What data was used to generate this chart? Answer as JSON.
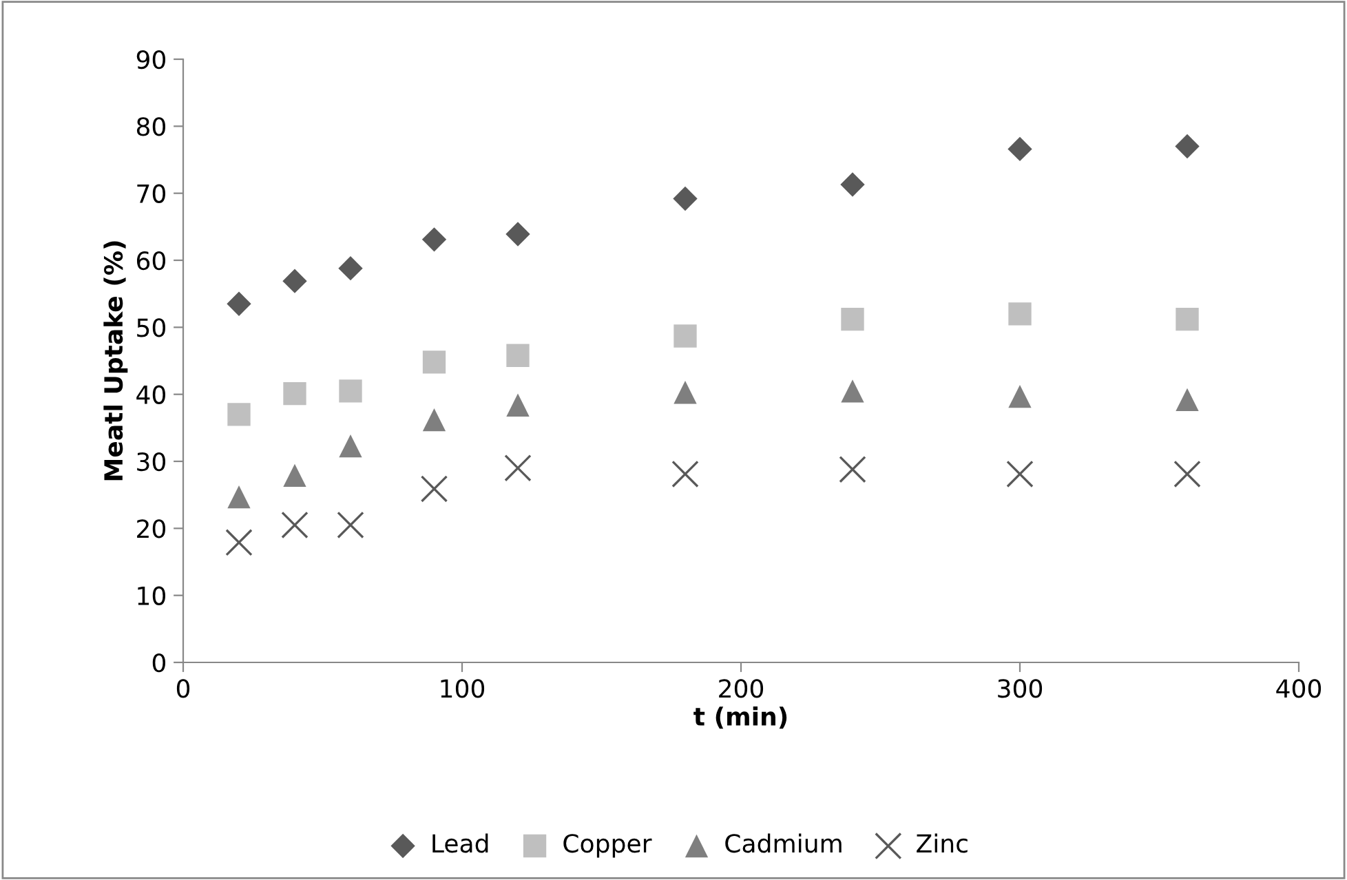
{
  "chart_data": {
    "type": "scatter",
    "xlabel": "t (min)",
    "ylabel": "Meatl Uptake (%)",
    "xlim": [
      0,
      400
    ],
    "xticks": [
      0,
      100,
      200,
      300,
      400
    ],
    "ylim": [
      0,
      90
    ],
    "yticks": [
      0,
      10,
      20,
      30,
      40,
      50,
      60,
      70,
      80,
      90
    ],
    "grid": false,
    "legend": "bottom",
    "x": [
      20,
      40,
      60,
      90,
      120,
      180,
      240,
      300,
      360
    ],
    "series": [
      {
        "name": "Lead",
        "color": "#595959",
        "marker": "diamond",
        "values": [
          53.5,
          56.9,
          58.8,
          63.1,
          63.9,
          69.2,
          71.3,
          76.6,
          77.0
        ]
      },
      {
        "name": "Copper",
        "color": "#bfbfbf",
        "marker": "square",
        "values": [
          37.0,
          40.1,
          40.5,
          44.8,
          45.8,
          48.7,
          51.2,
          52.0,
          51.2
        ]
      },
      {
        "name": "Cadmium",
        "color": "#7f7f7f",
        "marker": "triangle",
        "values": [
          24.7,
          27.9,
          32.3,
          36.2,
          38.4,
          40.3,
          40.5,
          39.7,
          39.2
        ]
      },
      {
        "name": "Zinc",
        "color": "#595959",
        "marker": "cross",
        "values": [
          17.9,
          20.5,
          20.5,
          25.9,
          29.0,
          28.1,
          28.8,
          28.1,
          28.1
        ]
      }
    ]
  }
}
